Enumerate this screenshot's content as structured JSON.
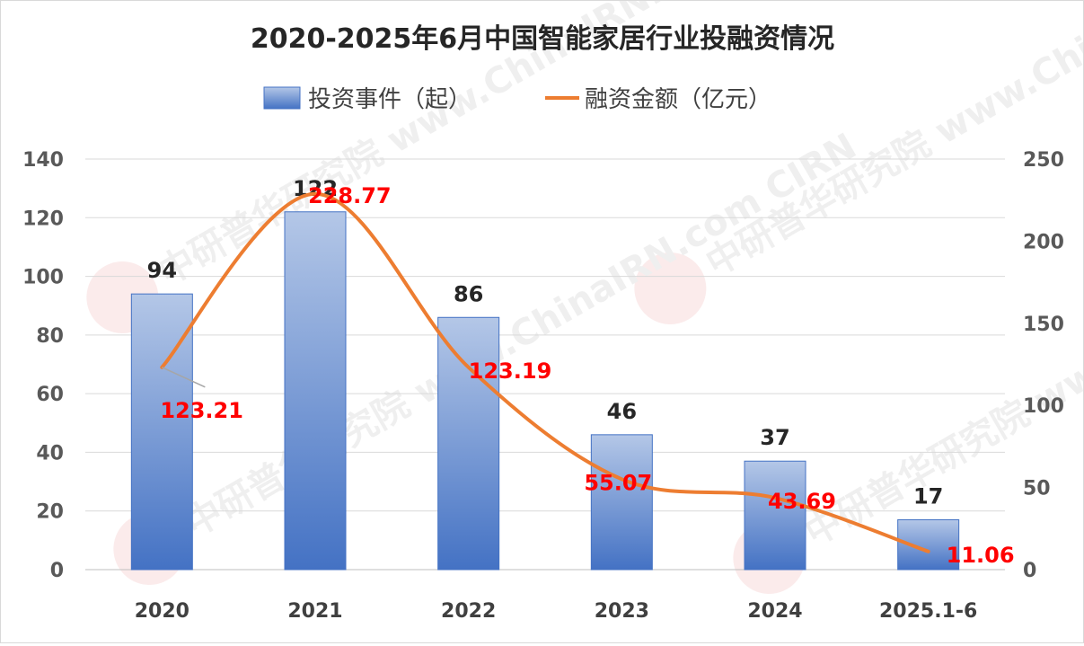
{
  "chart_data": {
    "type": "bar",
    "title": "2020-2025年6月中国智能家居行业投融资情况",
    "categories": [
      "2020",
      "2021",
      "2022",
      "2023",
      "2024",
      "2025.1-6"
    ],
    "series": [
      {
        "name": "投资事件（起）",
        "chart_type": "bar",
        "axis": "left",
        "values": [
          94,
          122,
          86,
          46,
          37,
          17
        ],
        "color": "#4472c4"
      },
      {
        "name": "融资金额（亿元）",
        "chart_type": "line",
        "axis": "right",
        "values": [
          123.21,
          228.77,
          123.19,
          55.07,
          43.69,
          11.06
        ],
        "color": "#ed7d31"
      }
    ],
    "bar_data_labels": [
      "94",
      "122",
      "86",
      "46",
      "37",
      "17"
    ],
    "line_data_labels": [
      "123.21",
      "228.77",
      "123.19",
      "55.07",
      "43.69",
      "11.06"
    ],
    "y_left": {
      "ticks": [
        "0",
        "20",
        "40",
        "60",
        "80",
        "100",
        "120",
        "140"
      ],
      "ylim": [
        0,
        140
      ]
    },
    "y_right": {
      "ticks": [
        "0",
        "50",
        "100",
        "150",
        "200",
        "250"
      ],
      "ylim": [
        0,
        250
      ]
    },
    "legend_position": "top",
    "grid": true,
    "watermark": "中研普华研究院 www.ChinaIRN.com CIRN"
  }
}
